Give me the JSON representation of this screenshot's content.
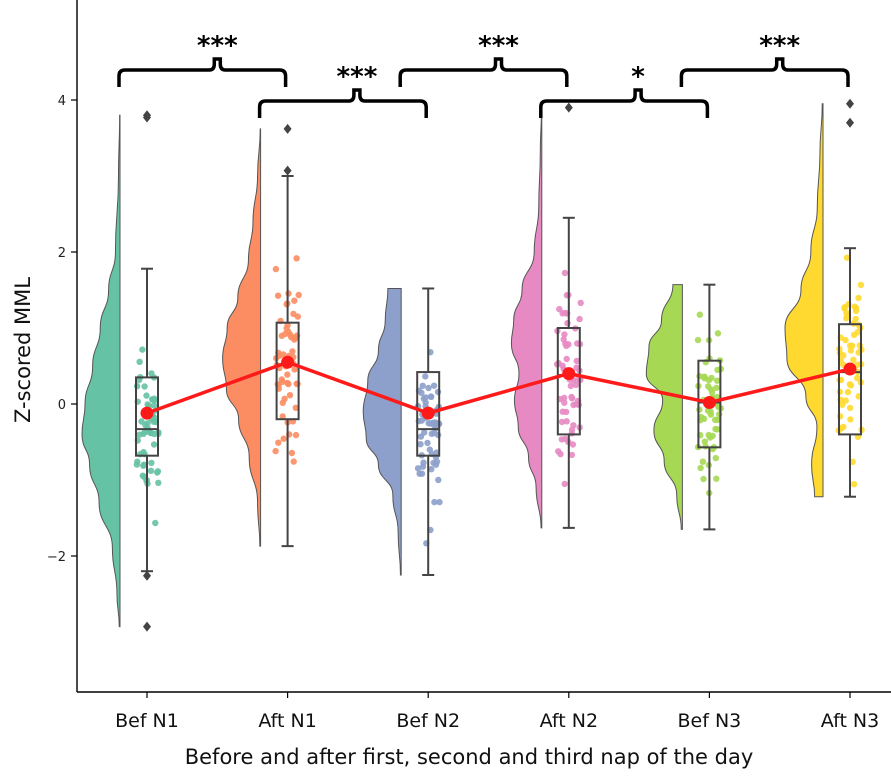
{
  "chart_data": {
    "type": "raincloud",
    "title": "",
    "xlabel": "Before and after first, second and third nap of the day",
    "ylabel": "Z-scored MML",
    "ylim": [
      -3.8,
      5.3
    ],
    "yticks": [
      4,
      2,
      0,
      -2
    ],
    "ytick_labels": [
      "4",
      "2",
      "0",
      "−2"
    ],
    "categories": [
      "Bef N1",
      "Aft N1",
      "Bef N2",
      "Aft N2",
      "Bef N3",
      "Aft N3"
    ],
    "colors": {
      "Bef N1": "#66c2a5",
      "Aft N1": "#fc8d62",
      "Bef N2": "#8da0cb",
      "Aft N2": "#e78ac3",
      "Bef N3": "#a6d854",
      "Aft N3": "#ffd92f",
      "mean_line": "#ff1a1a",
      "outlier": "#444444"
    },
    "boxes": [
      {
        "category": "Bef N1",
        "whisker_low": -2.2,
        "q1": -0.68,
        "median": -0.33,
        "q3": 0.35,
        "whisker_high": 1.78,
        "outliers": [
          3.8,
          3.77,
          -2.26,
          -2.93
        ]
      },
      {
        "category": "Aft N1",
        "whisker_low": -1.87,
        "q1": -0.2,
        "median": 0.52,
        "q3": 1.07,
        "whisker_high": 3.0,
        "outliers": [
          3.62,
          3.07
        ]
      },
      {
        "category": "Bef N2",
        "whisker_low": -2.25,
        "q1": -0.68,
        "median": -0.33,
        "q3": 0.42,
        "whisker_high": 1.52,
        "outliers": []
      },
      {
        "category": "Aft N2",
        "whisker_low": -1.63,
        "q1": -0.4,
        "median": 0.38,
        "q3": 1.0,
        "whisker_high": 2.45,
        "outliers": [
          3.9
        ]
      },
      {
        "category": "Bef N3",
        "whisker_low": -1.65,
        "q1": -0.57,
        "median": 0.02,
        "q3": 0.57,
        "whisker_high": 1.57,
        "outliers": []
      },
      {
        "category": "Aft N3",
        "whisker_low": -1.22,
        "q1": -0.4,
        "median": 0.42,
        "q3": 1.05,
        "whisker_high": 2.05,
        "outliers": [
          3.95,
          3.7
        ]
      }
    ],
    "series": [
      {
        "type": "line",
        "values": [
          -0.12,
          0.55,
          -0.12,
          0.4,
          0.02,
          0.46
        ]
      }
    ],
    "violins": [
      {
        "category": "Bef N1",
        "range": [
          -2.93,
          3.8
        ],
        "density": [
          [
            -2.93,
            0.02
          ],
          [
            -2.5,
            0.08
          ],
          [
            -1.9,
            0.2
          ],
          [
            -1.3,
            0.55
          ],
          [
            -0.8,
            0.8
          ],
          [
            -0.4,
            1.0
          ],
          [
            0.0,
            0.92
          ],
          [
            0.5,
            0.72
          ],
          [
            1.0,
            0.52
          ],
          [
            1.5,
            0.3
          ],
          [
            2.0,
            0.12
          ],
          [
            3.0,
            0.04
          ],
          [
            3.8,
            0.01
          ]
        ]
      },
      {
        "category": "Aft N1",
        "range": [
          -1.87,
          3.62
        ],
        "density": [
          [
            -1.87,
            0.02
          ],
          [
            -1.3,
            0.08
          ],
          [
            -0.7,
            0.3
          ],
          [
            -0.2,
            0.58
          ],
          [
            0.2,
            0.9
          ],
          [
            0.6,
            1.0
          ],
          [
            1.0,
            0.88
          ],
          [
            1.4,
            0.6
          ],
          [
            1.9,
            0.32
          ],
          [
            2.4,
            0.2
          ],
          [
            3.0,
            0.08
          ],
          [
            3.62,
            0.01
          ]
        ]
      },
      {
        "category": "Bef N2",
        "range": [
          -2.25,
          1.52
        ],
        "density": [
          [
            -2.25,
            0.02
          ],
          [
            -1.7,
            0.08
          ],
          [
            -1.2,
            0.22
          ],
          [
            -0.8,
            0.6
          ],
          [
            -0.45,
            0.92
          ],
          [
            -0.1,
            1.0
          ],
          [
            0.3,
            0.88
          ],
          [
            0.7,
            0.6
          ],
          [
            1.1,
            0.42
          ],
          [
            1.52,
            0.35
          ]
        ]
      },
      {
        "category": "Aft N2",
        "range": [
          -1.63,
          3.88
        ],
        "density": [
          [
            -1.63,
            0.02
          ],
          [
            -1.1,
            0.15
          ],
          [
            -0.7,
            0.35
          ],
          [
            -0.3,
            0.62
          ],
          [
            0.05,
            0.72
          ],
          [
            0.4,
            0.6
          ],
          [
            0.8,
            0.8
          ],
          [
            1.1,
            0.74
          ],
          [
            1.5,
            0.52
          ],
          [
            2.0,
            0.2
          ],
          [
            2.6,
            0.08
          ],
          [
            3.3,
            0.04
          ],
          [
            3.88,
            0.01
          ]
        ]
      },
      {
        "category": "Bef N3",
        "range": [
          -1.65,
          1.57
        ],
        "density": [
          [
            -1.65,
            0.03
          ],
          [
            -1.2,
            0.15
          ],
          [
            -0.75,
            0.48
          ],
          [
            -0.35,
            0.75
          ],
          [
            0.05,
            0.52
          ],
          [
            0.4,
            0.95
          ],
          [
            0.75,
            0.88
          ],
          [
            1.1,
            0.55
          ],
          [
            1.57,
            0.25
          ]
        ]
      },
      {
        "category": "Aft N3",
        "range": [
          -1.22,
          3.95
        ],
        "density": [
          [
            -1.22,
            0.22
          ],
          [
            -0.8,
            0.3
          ],
          [
            -0.3,
            0.16
          ],
          [
            0.1,
            0.45
          ],
          [
            0.6,
            0.95
          ],
          [
            1.0,
            1.0
          ],
          [
            1.5,
            0.58
          ],
          [
            2.0,
            0.32
          ],
          [
            2.6,
            0.15
          ],
          [
            3.3,
            0.08
          ],
          [
            3.95,
            0.02
          ]
        ]
      }
    ],
    "significance": [
      {
        "from": "Bef N1",
        "to": "Aft N1",
        "label": "***",
        "level": 1
      },
      {
        "from": "Aft N1",
        "to": "Bef N2",
        "label": "***",
        "level": 0
      },
      {
        "from": "Bef N2",
        "to": "Aft N2",
        "label": "***",
        "level": 1
      },
      {
        "from": "Aft N2",
        "to": "Bef N3",
        "label": "*",
        "level": 0
      },
      {
        "from": "Bef N3",
        "to": "Aft N3",
        "label": "***",
        "level": 1
      }
    ]
  }
}
